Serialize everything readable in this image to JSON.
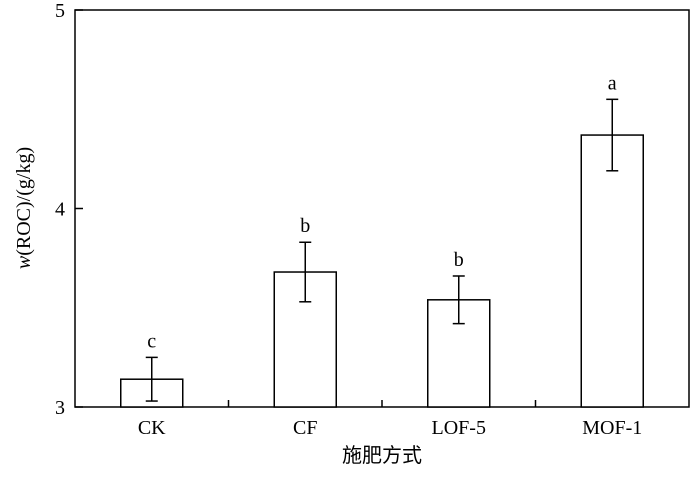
{
  "chart_data": {
    "type": "bar",
    "categories": [
      "CK",
      "CF",
      "LOF-5",
      "MOF-1"
    ],
    "values": [
      3.14,
      3.68,
      3.54,
      4.37
    ],
    "errors": [
      0.11,
      0.15,
      0.12,
      0.18
    ],
    "significance": [
      "c",
      "b",
      "b",
      "a"
    ],
    "ylim": [
      3,
      5
    ],
    "yticks": [
      3,
      4,
      5
    ],
    "xlabel": "施肥方式",
    "ylabel": "w(ROC)/(g/kg)",
    "ylabel_italic_prefix": "w",
    "ylabel_rest": "(ROC)/(g/kg)",
    "grid": false,
    "legend": "none"
  }
}
